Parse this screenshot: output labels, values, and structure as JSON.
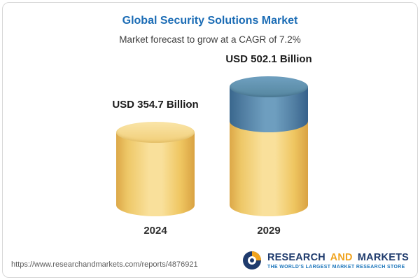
{
  "chart_data": {
    "type": "bar",
    "title": "Global Security Solutions Market",
    "subtitle": "Market forecast to grow at a CAGR of 7.2%",
    "categories": [
      "2024",
      "2029"
    ],
    "values": [
      354.7,
      502.1
    ],
    "value_labels": [
      "USD 354.7 Billion",
      "USD 502.1 Billion"
    ],
    "unit": "USD Billion",
    "cagr": "7.2%",
    "xlabel": "",
    "ylabel": "",
    "ylim": [
      0,
      502.1
    ],
    "legend": false,
    "grid": false,
    "bar_style": "3d-cylinder",
    "colors": {
      "bar_gold": "#F3CF74",
      "bar_blue_segment": "#4B7FA6",
      "title_blue": "#1B6CB5"
    }
  },
  "footer": {
    "url": "https://www.researchandmarkets.com/reports/4876921",
    "logo": {
      "word1": "RESEARCH",
      "word2": "AND",
      "word3": "MARKETS",
      "tagline": "THE WORLD'S LARGEST MARKET RESEARCH STORE"
    }
  }
}
